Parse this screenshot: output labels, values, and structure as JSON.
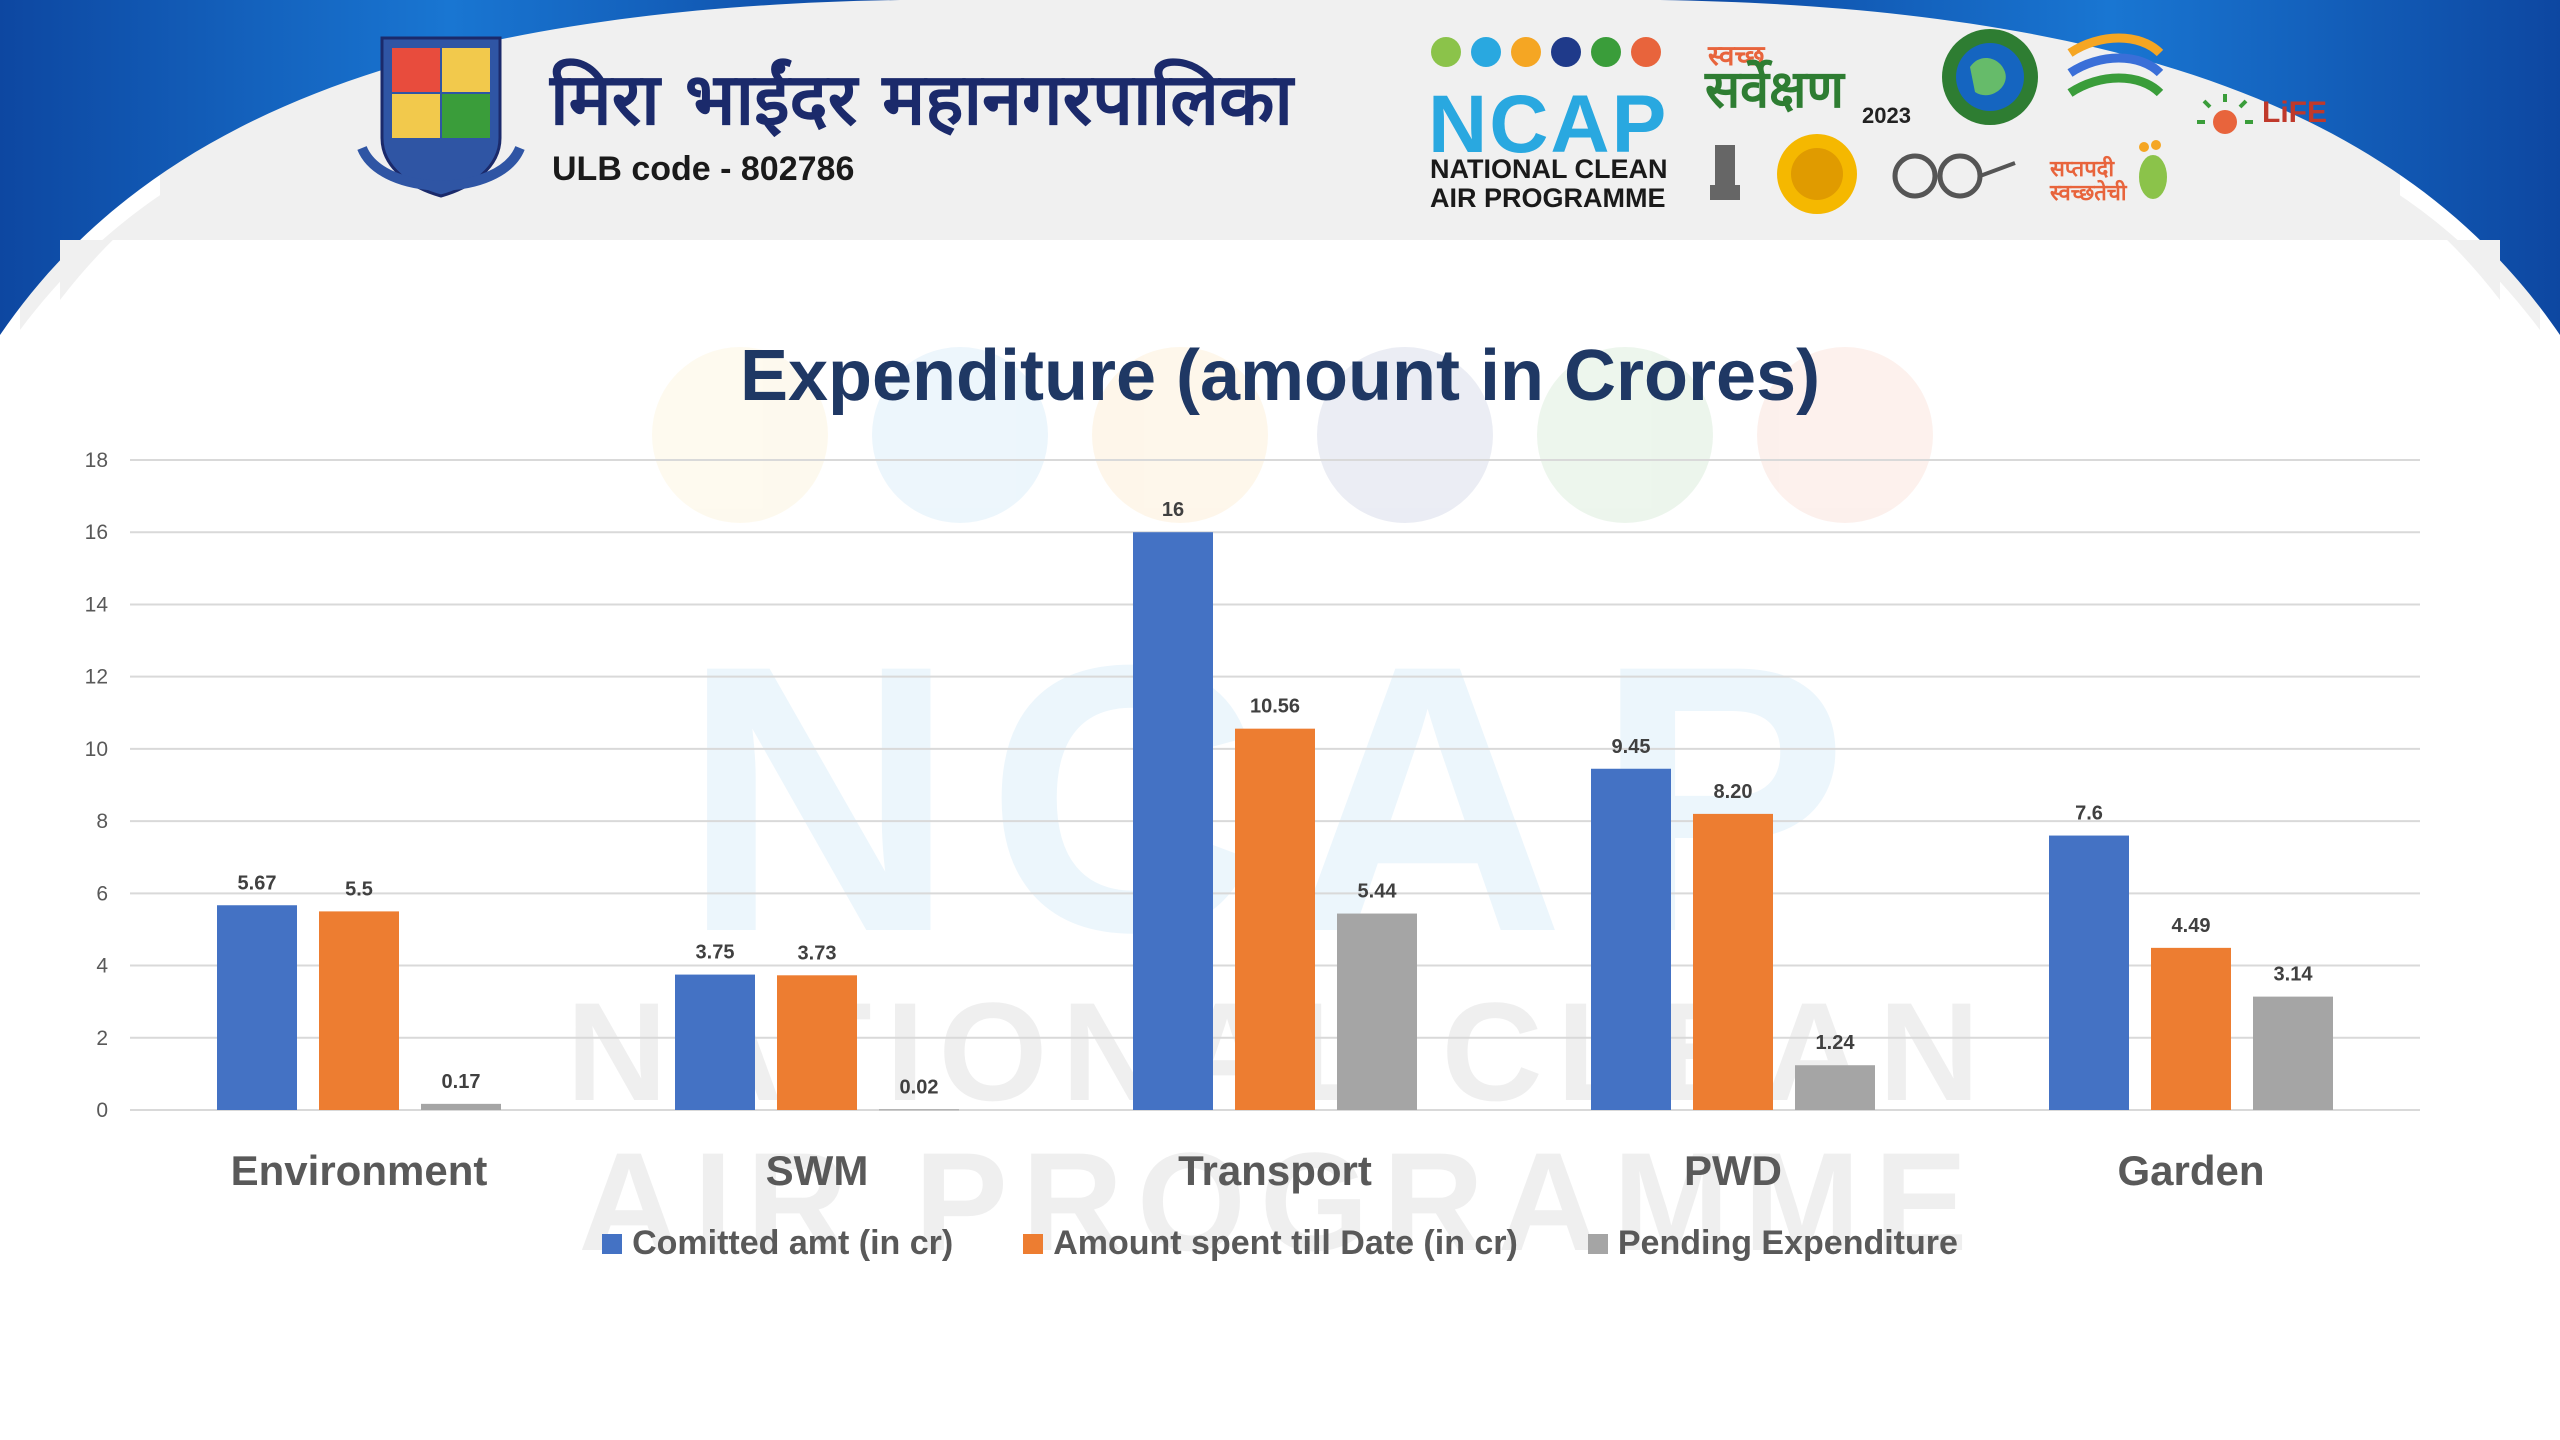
{
  "header": {
    "corporation_name": "मिरा भाईंदर महानगरपालिका",
    "ulb_code": "ULB code - 802786",
    "ncap": {
      "word": "NCAP",
      "subtitle_line1": "NATIONAL CLEAN",
      "subtitle_line2": "AIR PROGRAMME"
    },
    "swachh_survekshan": "सर्वेक्षण",
    "swachh_small": "स्वच्छ",
    "swachh_year": "2023",
    "life_logo": "LiFE",
    "saptapadi": "सप्तपदी स्वच्छतेची"
  },
  "colors": {
    "navy": "#1f3864",
    "header_bg": "#f0f0f0",
    "arc_blue": "#1565c0"
  },
  "chart_data": {
    "type": "bar",
    "title": "Expenditure (amount in Crores)",
    "categories": [
      "Environment",
      "SWM",
      "Transport",
      "PWD",
      "Garden"
    ],
    "series": [
      {
        "name": "Comitted amt (in cr)",
        "color": "#4472c4",
        "values": [
          5.67,
          3.75,
          16,
          9.45,
          7.6
        ],
        "labels": [
          "5.67",
          "3.75",
          "16",
          "9.45",
          "7.6"
        ]
      },
      {
        "name": "Amount spent till Date (in cr)",
        "color": "#ed7d31",
        "values": [
          5.5,
          3.73,
          10.56,
          8.2,
          4.49
        ],
        "labels": [
          "5.5",
          "3.73",
          "10.56",
          "8.20",
          "4.49"
        ]
      },
      {
        "name": "Pending Expenditure",
        "color": "#a5a5a5",
        "values": [
          0.17,
          0.02,
          5.44,
          1.24,
          3.14
        ],
        "labels": [
          "0.17",
          "0.02",
          "5.44",
          "1.24",
          "3.14"
        ]
      }
    ],
    "yticks": [
      "0",
      "2",
      "4",
      "6",
      "8",
      "10",
      "12",
      "14",
      "16",
      "18"
    ],
    "ylim": [
      0,
      18
    ],
    "grid": true,
    "legend_position": "bottom"
  }
}
